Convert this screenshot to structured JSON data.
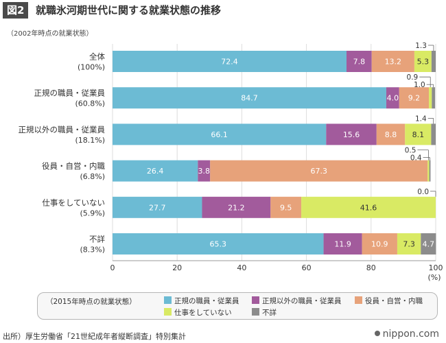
{
  "title": {
    "badge": "図2",
    "text": "就職氷河期世代に関する就業状態の推移"
  },
  "subtitle": "（2002年時点の就業状態）",
  "colors": {
    "regular": "#6cbbd4",
    "nonregular": "#a25b9c",
    "executive": "#e7a27a",
    "notworking": "#d9ea64",
    "unknown": "#8c8c8c"
  },
  "chart_data": {
    "type": "bar",
    "orientation": "horizontal",
    "stacked": true,
    "title": "就職氷河期世代に関する就業状態の推移",
    "xlabel": "(%)",
    "xlim": [
      0,
      100
    ],
    "xticks": [
      0,
      20,
      40,
      60,
      80,
      100
    ],
    "categories": [
      {
        "name": "全体",
        "share": "(100%)"
      },
      {
        "name": "正規の職員・従業員",
        "share": "(60.8%)"
      },
      {
        "name": "正規以外の職員・従業員",
        "share": "(18.1%)"
      },
      {
        "name": "役員・自営・内職",
        "share": "(6.8%)"
      },
      {
        "name": "仕事をしていない",
        "share": "(5.9%)"
      },
      {
        "name": "不詳",
        "share": "(8.3%)"
      }
    ],
    "series": [
      {
        "key": "regular",
        "name": "正規の職員・従業員",
        "values": [
          72.4,
          84.7,
          66.1,
          26.4,
          27.7,
          65.3
        ]
      },
      {
        "key": "nonregular",
        "name": "正規以外の職員・従業員",
        "values": [
          7.8,
          4.0,
          15.6,
          3.8,
          21.2,
          11.9
        ]
      },
      {
        "key": "executive",
        "name": "役員・自営・内職",
        "values": [
          13.2,
          9.2,
          8.8,
          67.3,
          9.5,
          10.9
        ]
      },
      {
        "key": "notworking",
        "name": "仕事をしていない",
        "values": [
          5.3,
          0.9,
          8.1,
          0.5,
          41.6,
          7.3
        ]
      },
      {
        "key": "unknown",
        "name": "不詳",
        "values": [
          1.3,
          1.0,
          1.4,
          0.4,
          0.0,
          4.7
        ]
      }
    ],
    "legend_title": "（2015年時点の就業状態）"
  },
  "source": "出所）厚生労働省「21世紀成年者縦断調査」特別集計",
  "logo": "nippon.com"
}
